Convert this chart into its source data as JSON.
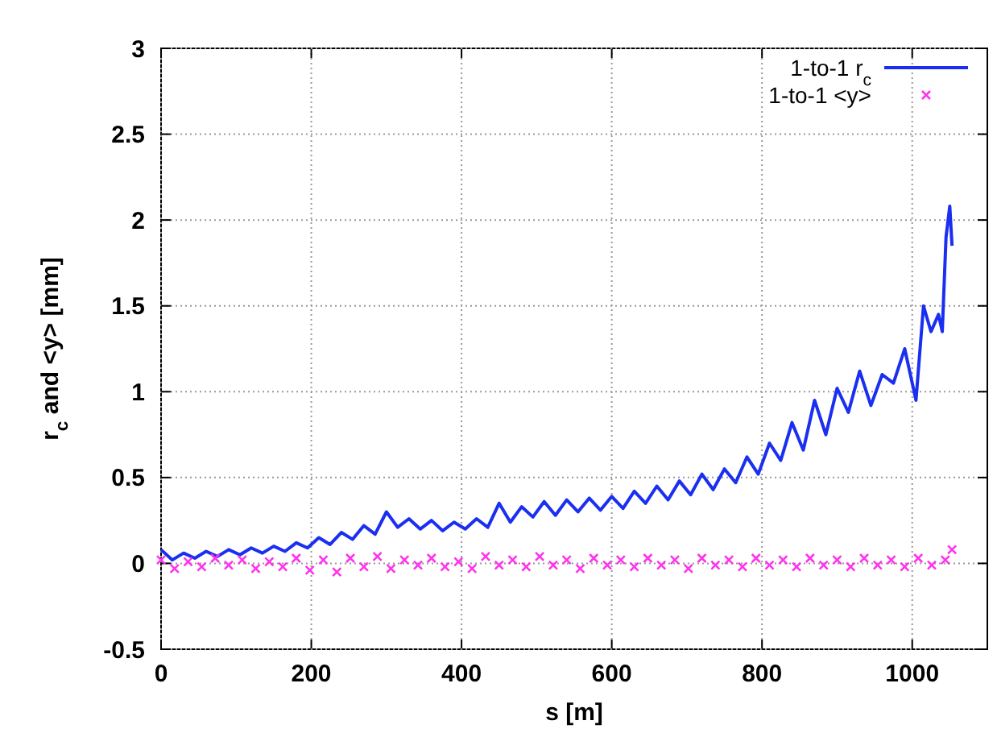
{
  "chart_data": {
    "type": "line",
    "xlabel": "s [m]",
    "ylabel": "r$_{c}$ and <y> [mm]",
    "xlim": [
      0,
      1100
    ],
    "ylim": [
      -0.5,
      3
    ],
    "xticks": [
      0,
      200,
      400,
      600,
      800,
      1000
    ],
    "yticks": [
      -0.5,
      0,
      0.5,
      1,
      1.5,
      2,
      2.5,
      3
    ],
    "grid": true,
    "legend": "top right",
    "series": [
      {
        "name": "1-to-1 r$_{c}$",
        "color": "#1a2ff0",
        "line_style": "solid",
        "x": [
          0,
          15,
          30,
          45,
          60,
          75,
          90,
          105,
          120,
          135,
          150,
          165,
          180,
          195,
          210,
          225,
          240,
          255,
          270,
          285,
          300,
          315,
          330,
          345,
          360,
          375,
          390,
          405,
          420,
          435,
          450,
          465,
          480,
          495,
          510,
          525,
          540,
          555,
          570,
          585,
          600,
          615,
          630,
          645,
          660,
          675,
          690,
          705,
          720,
          735,
          750,
          765,
          780,
          795,
          810,
          825,
          840,
          855,
          870,
          885,
          900,
          915,
          930,
          945,
          960,
          975,
          990,
          1005,
          1015,
          1025,
          1035,
          1040,
          1045,
          1050,
          1053
        ],
        "values": [
          0.08,
          0.02,
          0.06,
          0.03,
          0.07,
          0.04,
          0.08,
          0.05,
          0.09,
          0.06,
          0.1,
          0.07,
          0.12,
          0.09,
          0.15,
          0.11,
          0.18,
          0.14,
          0.22,
          0.17,
          0.3,
          0.21,
          0.26,
          0.2,
          0.25,
          0.19,
          0.24,
          0.2,
          0.26,
          0.21,
          0.35,
          0.24,
          0.33,
          0.27,
          0.36,
          0.28,
          0.37,
          0.3,
          0.38,
          0.31,
          0.39,
          0.32,
          0.42,
          0.35,
          0.45,
          0.37,
          0.48,
          0.4,
          0.52,
          0.43,
          0.55,
          0.47,
          0.62,
          0.52,
          0.7,
          0.6,
          0.82,
          0.66,
          0.95,
          0.75,
          1.02,
          0.88,
          1.12,
          0.92,
          1.1,
          1.05,
          1.25,
          0.95,
          1.5,
          1.35,
          1.45,
          1.35,
          1.9,
          2.08,
          1.85
        ]
      },
      {
        "name": "1-to-1 <y>",
        "type": "scatter",
        "color": "#ff33ee",
        "marker": "cross",
        "x": [
          0,
          18,
          36,
          54,
          72,
          90,
          108,
          126,
          144,
          162,
          180,
          198,
          216,
          234,
          252,
          270,
          288,
          306,
          324,
          342,
          360,
          378,
          396,
          414,
          432,
          450,
          468,
          486,
          504,
          522,
          540,
          558,
          576,
          594,
          612,
          630,
          648,
          666,
          684,
          702,
          720,
          738,
          756,
          774,
          792,
          810,
          828,
          846,
          864,
          882,
          900,
          918,
          936,
          954,
          972,
          990,
          1008,
          1026,
          1044,
          1053
        ],
        "values": [
          0.02,
          -0.03,
          0.01,
          -0.02,
          0.03,
          -0.01,
          0.02,
          -0.03,
          0.01,
          -0.02,
          0.03,
          -0.04,
          0.02,
          -0.05,
          0.03,
          -0.02,
          0.04,
          -0.03,
          0.02,
          -0.01,
          0.03,
          -0.02,
          0.01,
          -0.03,
          0.04,
          -0.01,
          0.02,
          -0.02,
          0.04,
          -0.01,
          0.02,
          -0.03,
          0.03,
          -0.01,
          0.02,
          -0.02,
          0.03,
          -0.01,
          0.02,
          -0.03,
          0.03,
          -0.01,
          0.02,
          -0.02,
          0.03,
          -0.01,
          0.02,
          -0.02,
          0.03,
          -0.01,
          0.02,
          -0.02,
          0.03,
          -0.01,
          0.02,
          -0.02,
          0.03,
          -0.01,
          0.02,
          0.08
        ]
      }
    ]
  }
}
